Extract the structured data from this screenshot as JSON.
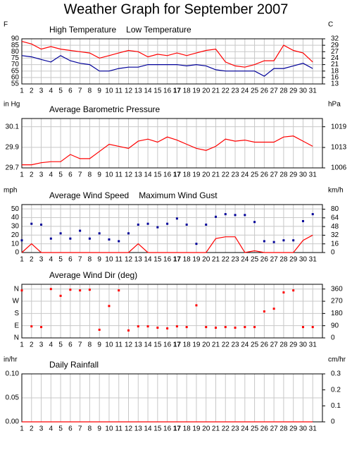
{
  "title": "Weather Graph for September 2007",
  "chart_data": [
    {
      "type": "line",
      "y_label": "F",
      "y2_label": "C",
      "x": [
        1,
        2,
        3,
        4,
        5,
        6,
        7,
        8,
        9,
        10,
        11,
        12,
        13,
        14,
        15,
        16,
        17,
        18,
        19,
        20,
        21,
        22,
        23,
        24,
        25,
        26,
        27,
        28,
        29,
        30,
        31
      ],
      "xlim": [
        1,
        32
      ],
      "highlight": 17,
      "ylim": [
        55,
        90
      ],
      "yticks": [
        55,
        60,
        65,
        70,
        75,
        80,
        85,
        90
      ],
      "y2lim": [
        12.78,
        32.22
      ],
      "y2ticks": [
        {
          "value": 12.78,
          "label": "13"
        },
        {
          "value": 15.56,
          "label": "16"
        },
        {
          "value": 18.33,
          "label": "18"
        },
        {
          "value": 21.11,
          "label": "21"
        },
        {
          "value": 23.89,
          "label": "24"
        },
        {
          "value": 26.67,
          "label": "27"
        },
        {
          "value": 29.44,
          "label": "29"
        },
        {
          "value": 32.22,
          "label": "32"
        }
      ],
      "grid": true,
      "series": [
        {
          "name": "High Temperature",
          "color": "#ff0000",
          "style": "line",
          "values": [
            88,
            86,
            82,
            84,
            82,
            81,
            80,
            79,
            75,
            77,
            79,
            81,
            80,
            76,
            78,
            77,
            79,
            77,
            79,
            81,
            82,
            72,
            69,
            68,
            70,
            73,
            73,
            85,
            81,
            79,
            72
          ]
        },
        {
          "name": "Low Temperature",
          "color": "#000099",
          "style": "line",
          "values": [
            77,
            76,
            74,
            72,
            77,
            73,
            71,
            70,
            65,
            65,
            67,
            68,
            68,
            70,
            70,
            70,
            70,
            69,
            70,
            69,
            66,
            65,
            65,
            65,
            65,
            61,
            67,
            67,
            69,
            71,
            67
          ]
        }
      ]
    },
    {
      "type": "line",
      "y_label": "in Hg",
      "y2_label": "hPa",
      "x": [
        1,
        2,
        3,
        4,
        5,
        6,
        7,
        8,
        9,
        10,
        11,
        12,
        13,
        14,
        15,
        16,
        17,
        18,
        19,
        20,
        21,
        22,
        23,
        24,
        25,
        26,
        27,
        28,
        29,
        30,
        31
      ],
      "xlim": [
        1,
        32
      ],
      "highlight": 17,
      "ylim": [
        29.7,
        30.18
      ],
      "yticks": [
        29.7,
        29.9,
        30.1
      ],
      "y2lim": [
        1005.8,
        1022.0
      ],
      "y2ticks": [
        {
          "value": 1005.8,
          "label": "1006"
        },
        {
          "value": 1012.5,
          "label": "1013"
        },
        {
          "value": 1019.3,
          "label": "1019"
        }
      ],
      "grid": true,
      "series": [
        {
          "name": "Average Barometric Pressure",
          "color": "#ff0000",
          "style": "line",
          "values": [
            29.73,
            29.73,
            29.75,
            29.76,
            29.76,
            29.83,
            29.79,
            29.79,
            29.86,
            29.93,
            29.91,
            29.89,
            29.96,
            29.98,
            29.95,
            30.0,
            29.97,
            29.93,
            29.89,
            29.87,
            29.91,
            29.98,
            29.96,
            29.97,
            29.95,
            29.95,
            29.95,
            30.0,
            30.01,
            29.96,
            29.91
          ]
        }
      ]
    },
    {
      "type": "line",
      "y_label": "mph",
      "y2_label": "km/h",
      "x": [
        1,
        2,
        3,
        4,
        5,
        6,
        7,
        8,
        9,
        10,
        11,
        12,
        13,
        14,
        15,
        16,
        17,
        18,
        19,
        20,
        21,
        22,
        23,
        24,
        25,
        26,
        27,
        28,
        29,
        30,
        31
      ],
      "xlim": [
        1,
        32
      ],
      "highlight": 17,
      "ylim": [
        0,
        55
      ],
      "yticks": [
        0,
        10,
        20,
        30,
        40,
        50
      ],
      "y2lim": [
        0,
        88.5
      ],
      "y2ticks": [
        0,
        16,
        32,
        48,
        64,
        80
      ],
      "grid": true,
      "series": [
        {
          "name": "Average Wind Speed",
          "color": "#ff0000",
          "style": "line",
          "values": [
            0,
            10,
            0,
            0,
            0,
            0,
            0,
            0,
            0,
            0,
            0,
            0,
            10,
            0,
            0,
            0,
            0,
            0,
            0,
            0,
            16,
            18,
            18,
            0,
            2,
            0,
            0,
            0,
            0,
            14,
            20
          ]
        },
        {
          "name": "Maximum Wind Gust",
          "color": "#000099",
          "style": "markers",
          "values": [
            14,
            33,
            32,
            16,
            22,
            16,
            25,
            16,
            22,
            15,
            13,
            22,
            32,
            33,
            29,
            33,
            39,
            32,
            10,
            32,
            41,
            44,
            43,
            43,
            35,
            13,
            12,
            14,
            14,
            36,
            44
          ]
        }
      ]
    },
    {
      "type": "scatter",
      "ytick_color": "#cc0000",
      "x": [
        1,
        2,
        3,
        4,
        5,
        6,
        7,
        8,
        9,
        10,
        11,
        12,
        13,
        14,
        15,
        16,
        17,
        18,
        19,
        20,
        21,
        22,
        23,
        24,
        25,
        26,
        27,
        28,
        29,
        30,
        31
      ],
      "xlim": [
        1,
        32
      ],
      "highlight": 17,
      "ylim": [
        0,
        395
      ],
      "yticks": [
        {
          "value": 360,
          "label": "N"
        },
        {
          "value": 270,
          "label": "W"
        },
        {
          "value": 180,
          "label": "S"
        },
        {
          "value": 90,
          "label": "E"
        },
        {
          "value": 0,
          "label": "N"
        }
      ],
      "y2lim": [
        0,
        395
      ],
      "y2ticks": [
        0,
        90,
        180,
        270,
        360
      ],
      "grid": true,
      "series": [
        {
          "name": "Average Wind Dir (deg)",
          "color": "#ff0000",
          "style": "markers",
          "values": [
            350,
            85,
            80,
            360,
            310,
            355,
            350,
            355,
            60,
            235,
            350,
            55,
            85,
            85,
            75,
            70,
            85,
            80,
            240,
            80,
            75,
            80,
            75,
            80,
            80,
            195,
            215,
            335,
            350,
            80,
            80
          ]
        }
      ]
    },
    {
      "type": "line",
      "y_label": "in/hr",
      "y2_label": "cm/hr",
      "x": [
        1,
        2,
        3,
        4,
        5,
        6,
        7,
        8,
        9,
        10,
        11,
        12,
        13,
        14,
        15,
        16,
        17,
        18,
        19,
        20,
        21,
        22,
        23,
        24,
        25,
        26,
        27,
        28,
        29,
        30,
        31
      ],
      "xlim": [
        1,
        32
      ],
      "highlight": 17,
      "ylim": [
        0,
        0.1
      ],
      "yticks": [
        {
          "value": 0,
          "label": "0.00"
        },
        {
          "value": 0.05,
          "label": "0.05"
        },
        {
          "value": 0.1,
          "label": "0.10"
        }
      ],
      "y2lim": [
        0,
        0.3
      ],
      "y2ticks": [
        0,
        0.1,
        0.2,
        0.3
      ],
      "grid": true,
      "series": [
        {
          "name": "Daily Rainfall",
          "color": "#ff0000",
          "style": "line",
          "values": [
            0,
            0,
            0,
            0,
            0,
            0,
            0,
            0,
            0,
            0,
            0,
            0,
            0,
            0,
            0,
            0,
            0,
            0,
            0,
            0,
            0,
            0,
            0,
            0,
            0,
            0,
            0,
            0,
            0,
            0,
            0
          ]
        }
      ]
    }
  ]
}
